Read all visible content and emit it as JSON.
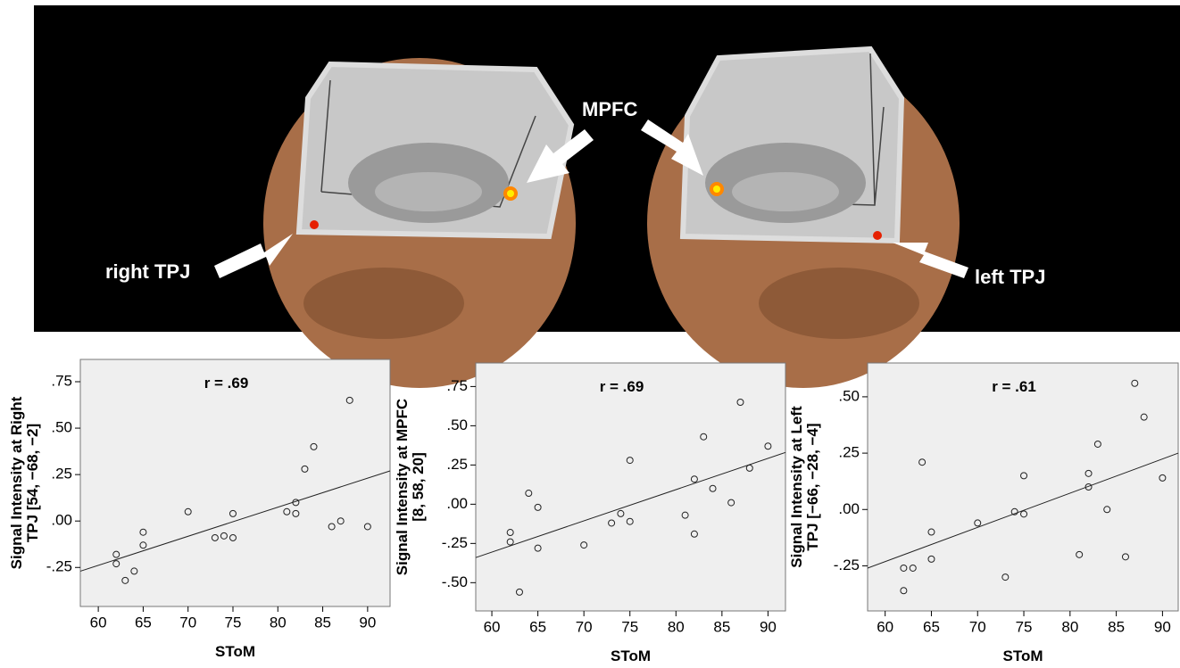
{
  "image": {
    "labels": [
      "MPFC",
      "right TPJ",
      "left TPJ"
    ]
  },
  "chart_data": [
    {
      "type": "scatter",
      "annotation": "r = .69",
      "xlabel": "SToM",
      "ylabel": [
        "Signal Intensity at Right",
        "TPJ [54, −68, −2]"
      ],
      "xlim": [
        58,
        92.5
      ],
      "ylim": [
        -0.46,
        0.87
      ],
      "xticks": [
        60,
        65,
        70,
        75,
        80,
        85,
        90
      ],
      "yticks": [
        {
          "value": 0.75,
          "label": ".75"
        },
        {
          "value": 0.5,
          "label": ".50"
        },
        {
          "value": 0.25,
          "label": ".25"
        },
        {
          "value": 0,
          "label": ".00"
        },
        {
          "value": -0.25,
          "label": "-.25"
        }
      ],
      "x": [
        62,
        62,
        63,
        64,
        65,
        65,
        70,
        73,
        74,
        75,
        75,
        81,
        82,
        82,
        83,
        84,
        86,
        87,
        88,
        90
      ],
      "values": [
        -0.18,
        -0.23,
        -0.32,
        -0.27,
        -0.06,
        -0.13,
        0.05,
        -0.09,
        -0.08,
        0.04,
        -0.09,
        0.05,
        0.1,
        0.04,
        0.28,
        0.4,
        -0.03,
        0.0,
        0.65,
        -0.03
      ],
      "fit": {
        "x": [
          58,
          92.5
        ],
        "y": [
          -0.27,
          0.27
        ]
      }
    },
    {
      "type": "scatter",
      "annotation": "r = .69",
      "xlabel": "SToM",
      "ylabel": [
        "Signal Intensity at MPFC",
        "[8, 58, 20]"
      ],
      "xlim": [
        58.25,
        91.9
      ],
      "ylim": [
        -0.68,
        0.9
      ],
      "xticks": [
        60,
        65,
        70,
        75,
        80,
        85,
        90
      ],
      "yticks": [
        {
          "value": 0.75,
          "label": ".75"
        },
        {
          "value": 0.5,
          "label": ".50"
        },
        {
          "value": 0.25,
          "label": ".25"
        },
        {
          "value": 0,
          "label": ".00"
        },
        {
          "value": -0.25,
          "label": "-.25"
        },
        {
          "value": -0.5,
          "label": "-.50"
        }
      ],
      "x": [
        62,
        62,
        63,
        64,
        65,
        65,
        70,
        73,
        74,
        75,
        75,
        81,
        82,
        82,
        83,
        84,
        86,
        87,
        88,
        90
      ],
      "values": [
        -0.18,
        -0.24,
        -0.56,
        0.07,
        -0.02,
        -0.28,
        -0.26,
        -0.12,
        -0.06,
        0.28,
        -0.11,
        -0.07,
        0.16,
        -0.19,
        0.43,
        0.1,
        0.01,
        0.65,
        0.23,
        0.37
      ],
      "fit": {
        "x": [
          58.25,
          91.9
        ],
        "y": [
          -0.34,
          0.33
        ]
      }
    },
    {
      "type": "scatter",
      "annotation": "r = .61",
      "xlabel": "SToM",
      "ylabel": [
        "Signal Intensity at Left",
        "TPJ [−66, −28, −4]"
      ],
      "xlim": [
        58.1,
        91.7
      ],
      "ylim": [
        -0.45,
        0.65
      ],
      "xticks": [
        60,
        65,
        70,
        75,
        80,
        85,
        90
      ],
      "yticks": [
        {
          "value": 0.5,
          "label": ".50"
        },
        {
          "value": 0.25,
          "label": ".25"
        },
        {
          "value": 0,
          "label": ".00"
        },
        {
          "value": -0.25,
          "label": "-.25"
        }
      ],
      "x": [
        62,
        62,
        63,
        64,
        65,
        65,
        70,
        73,
        74,
        75,
        75,
        81,
        82,
        82,
        83,
        84,
        86,
        87,
        88,
        90
      ],
      "values": [
        -0.26,
        -0.36,
        -0.26,
        0.21,
        -0.1,
        -0.22,
        -0.06,
        -0.3,
        -0.01,
        0.15,
        -0.02,
        -0.2,
        0.16,
        0.1,
        0.29,
        0.0,
        -0.21,
        0.56,
        0.41,
        0.14
      ],
      "fit": {
        "x": [
          58.1,
          91.7
        ],
        "y": [
          -0.26,
          0.25
        ]
      }
    }
  ]
}
